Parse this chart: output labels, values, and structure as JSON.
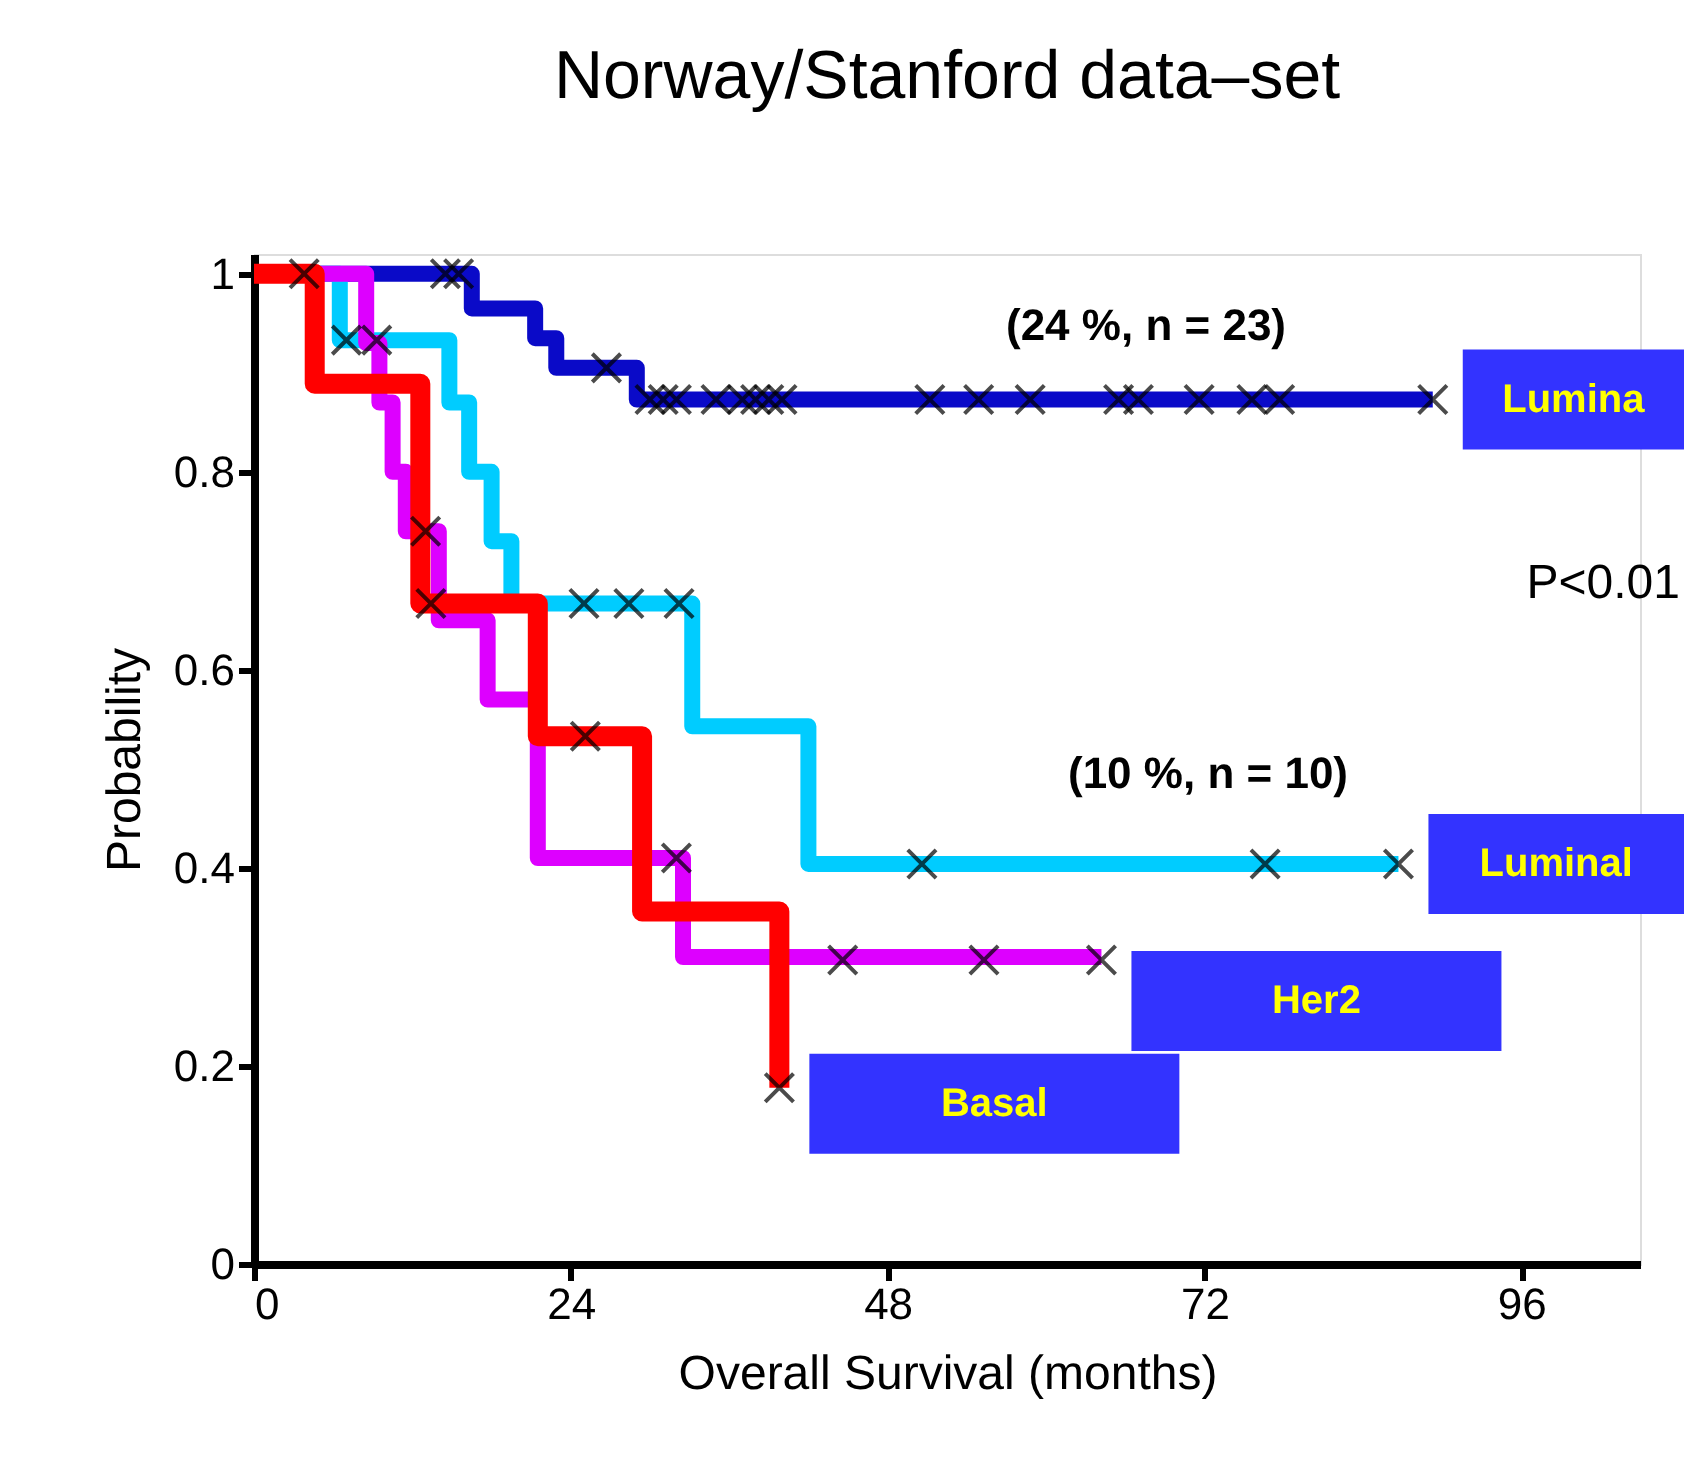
{
  "chart_data": {
    "type": "step",
    "title": "Norway/Stanford data–set",
    "xlabel": "Overall Survival (months)",
    "ylabel": "Probability",
    "xlim": [
      0,
      105
    ],
    "xticks": [
      0,
      24,
      48,
      72,
      96
    ],
    "ylim": [
      0,
      1.02
    ],
    "yticks": [
      0,
      0.2,
      0.4,
      0.6,
      0.8,
      1
    ],
    "grid": false,
    "line_style": "solid",
    "series": [
      {
        "name": "Lumina",
        "color": "#0a0ac8",
        "x": [
          0,
          16.5,
          21.3,
          22.9,
          29,
          89.3
        ],
        "values": [
          1,
          0.965,
          0.935,
          0.905,
          0.873,
          0.873
        ]
      },
      {
        "name": "Luminal",
        "color": "#00ccff",
        "x": [
          0,
          6.5,
          14.8,
          16.3,
          18,
          19.5,
          33.2,
          42,
          86.7
        ],
        "values": [
          1,
          0.933,
          0.87,
          0.8,
          0.73,
          0.667,
          0.543,
          0.404,
          0.404
        ]
      },
      {
        "name": "Her2",
        "color": "#dd00ff",
        "x": [
          0,
          8.5,
          9.5,
          10.5,
          11.5,
          14,
          17.7,
          21.5,
          32.5,
          64.2
        ],
        "values": [
          1,
          0.93,
          0.87,
          0.8,
          0.74,
          0.65,
          0.57,
          0.41,
          0.31,
          0.31
        ]
      },
      {
        "name": "Basal",
        "color": "#ff0000",
        "x": [
          0,
          4.6,
          12.6,
          21.5,
          29.4,
          39.8,
          39.8
        ],
        "values": [
          1,
          0.889,
          0.667,
          0.533,
          0.356,
          0.356,
          0.178
        ]
      },
      {
        "type": "scatter",
        "marker": "cross",
        "color": "#000000",
        "x": [
          14.5,
          15.5,
          26.7,
          30,
          31,
          32,
          35,
          37,
          38,
          39,
          40,
          51.2,
          54.9,
          58.8,
          65.5,
          67,
          71.6,
          75.6,
          77.7,
          89.3
        ],
        "values": [
          1,
          1,
          0.905,
          0.873,
          0.873,
          0.873,
          0.873,
          0.873,
          0.873,
          0.873,
          0.873,
          0.873,
          0.873,
          0.873,
          0.873,
          0.873,
          0.873,
          0.873,
          0.873,
          0.873
        ]
      },
      {
        "type": "scatter",
        "marker": "cross",
        "color": "#000000",
        "x": [
          7,
          9.3,
          25,
          28.4,
          32.2,
          50.6,
          76.6,
          86.7
        ],
        "values": [
          0.933,
          0.933,
          0.667,
          0.667,
          0.667,
          0.404,
          0.404,
          0.404
        ]
      },
      {
        "type": "scatter",
        "marker": "cross",
        "color": "#000000",
        "x": [
          13,
          32,
          44.6,
          55.3,
          64.2
        ],
        "values": [
          0.74,
          0.41,
          0.307,
          0.307,
          0.307
        ]
      },
      {
        "type": "scatter",
        "marker": "cross",
        "color": "#000000",
        "x": [
          3.8,
          13.4,
          25.1,
          39.8
        ],
        "values": [
          1,
          0.667,
          0.533,
          0.178
        ]
      }
    ],
    "annotations": [
      "(24 %, n = 23)",
      "(10 %, n = 10)",
      "P<0.01"
    ]
  }
}
